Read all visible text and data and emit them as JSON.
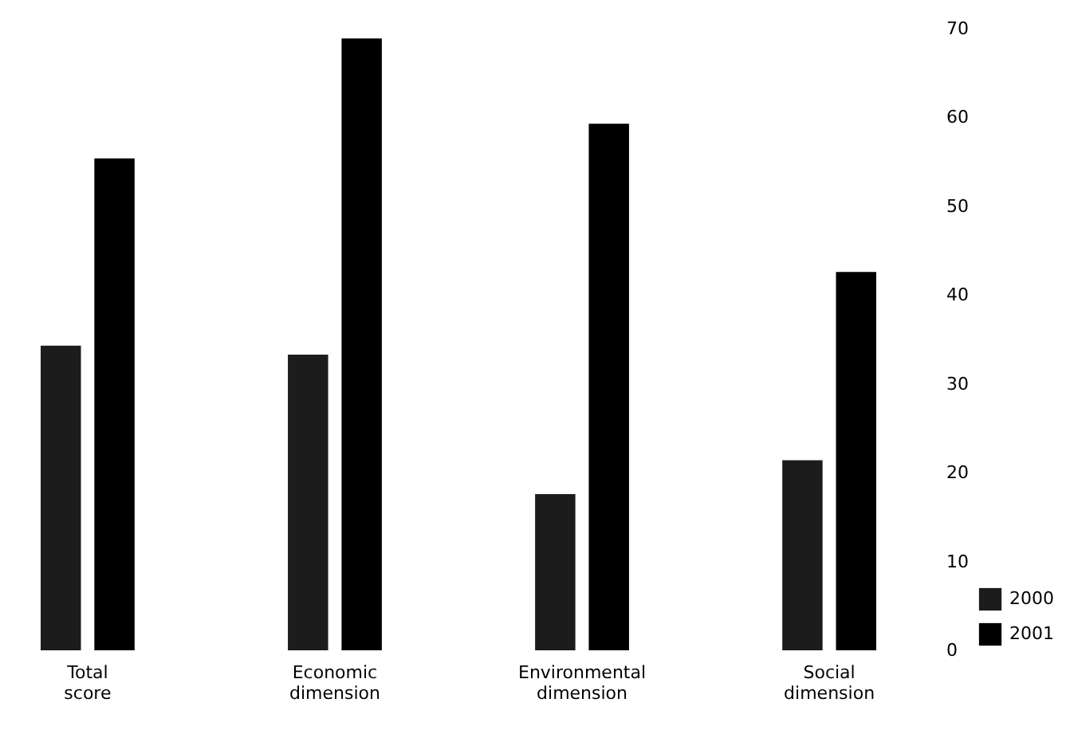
{
  "chart_data": {
    "type": "bar",
    "categories": [
      "Total score",
      "Economic dimension",
      "Environmental dimension",
      "Social dimension"
    ],
    "series": [
      {
        "name": "2000",
        "color": "#1c1c1c",
        "values": [
          34.3,
          33.3,
          17.6,
          21.4
        ]
      },
      {
        "name": "2001",
        "color": "#000000",
        "values": [
          55.4,
          68.9,
          59.3,
          42.6
        ]
      }
    ],
    "ylim": [
      0,
      70
    ],
    "yticks": [
      0,
      10,
      20,
      30,
      40,
      50,
      60,
      70
    ],
    "grid": false,
    "legend": "bottom right"
  }
}
